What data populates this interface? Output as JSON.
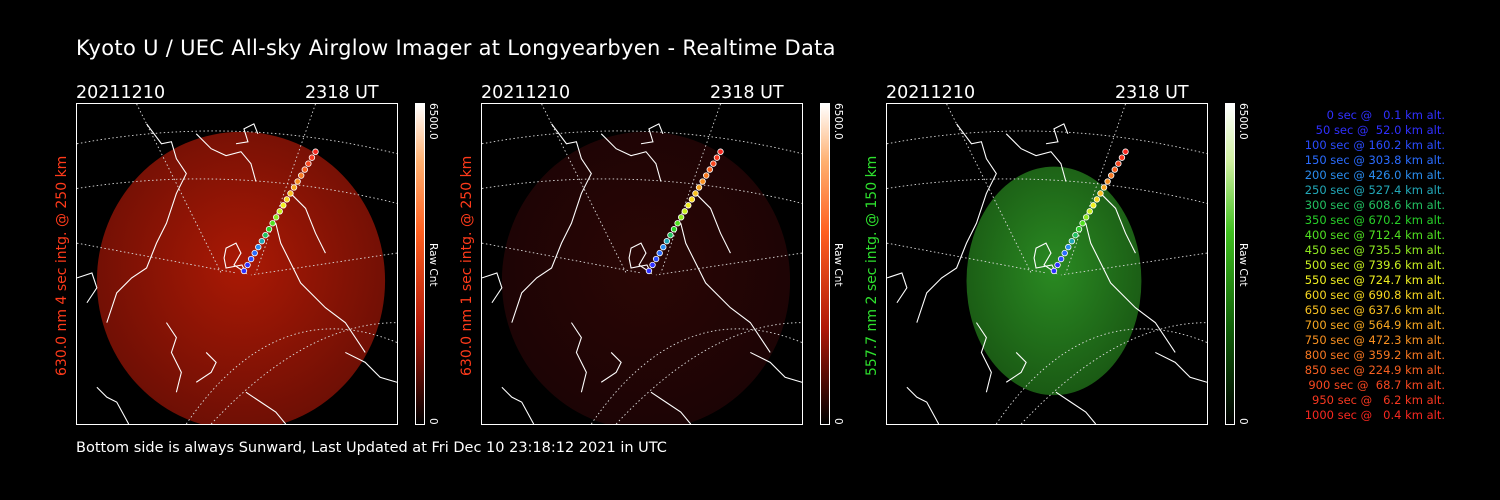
{
  "title": "Kyoto U / UEC All-sky Airglow Imager at Longyearbyen - Realtime Data",
  "footer": "Bottom side is always Sunward, Last Updated at Fri Dec 10 23:18:12 2021 in UTC",
  "panels": [
    {
      "date": "20211210",
      "time": "2318 UT",
      "ylabel": "630.0 nm 4 sec intg. @ 250 km",
      "label_color": "#ff3a1a",
      "cb_max": "6500.0",
      "cb_min": "0",
      "cb_unit": "Raw Cnt",
      "colormap": "red",
      "brightness": 1.0
    },
    {
      "date": "20211210",
      "time": "2318 UT",
      "ylabel": "630.0 nm 1 sec intg. @ 250 km",
      "label_color": "#ff3a1a",
      "cb_max": "6500.0",
      "cb_min": "0",
      "cb_unit": "Raw Cnt",
      "colormap": "red",
      "brightness": 0.25
    },
    {
      "date": "20211210",
      "time": "2318 UT",
      "ylabel": "557.7 nm 2 sec intg. @ 150 km",
      "label_color": "#2ee02e",
      "cb_max": "6500.0",
      "cb_min": "0",
      "cb_unit": "Raw Cnt",
      "colormap": "green",
      "brightness": 0.9
    }
  ],
  "legend": [
    {
      "text": "0 sec @   0.1 km alt.",
      "color": "#3030ff"
    },
    {
      "text": "50 sec @  52.0 km alt.",
      "color": "#3030ff"
    },
    {
      "text": "100 sec @ 160.2 km alt.",
      "color": "#2a4cff"
    },
    {
      "text": "150 sec @ 303.8 km alt.",
      "color": "#2a6cff"
    },
    {
      "text": "200 sec @ 426.0 km alt.",
      "color": "#2a8cf0"
    },
    {
      "text": "250 sec @ 527.4 km alt.",
      "color": "#22a8b8"
    },
    {
      "text": "300 sec @ 608.6 km alt.",
      "color": "#22c060"
    },
    {
      "text": "350 sec @ 670.2 km alt.",
      "color": "#28d028"
    },
    {
      "text": "400 sec @ 712.4 km alt.",
      "color": "#50e020"
    },
    {
      "text": "450 sec @ 735.5 km alt.",
      "color": "#8ee820"
    },
    {
      "text": "500 sec @ 739.6 km alt.",
      "color": "#c8f020"
    },
    {
      "text": "550 sec @ 724.7 km alt.",
      "color": "#f0f020"
    },
    {
      "text": "600 sec @ 690.8 km alt.",
      "color": "#f8d820"
    },
    {
      "text": "650 sec @ 637.6 km alt.",
      "color": "#f8c020"
    },
    {
      "text": "700 sec @ 564.9 km alt.",
      "color": "#f8a820"
    },
    {
      "text": "750 sec @ 472.3 km alt.",
      "color": "#f89020"
    },
    {
      "text": "800 sec @ 359.2 km alt.",
      "color": "#f87820"
    },
    {
      "text": "850 sec @ 224.9 km alt.",
      "color": "#f86020"
    },
    {
      "text": "900 sec @  68.7 km alt.",
      "color": "#f84820"
    },
    {
      "text": "950 sec @   6.2 km alt.",
      "color": "#f83820"
    },
    {
      "text": "1000 sec @   0.4 km alt.",
      "color": "#f82820"
    }
  ]
}
